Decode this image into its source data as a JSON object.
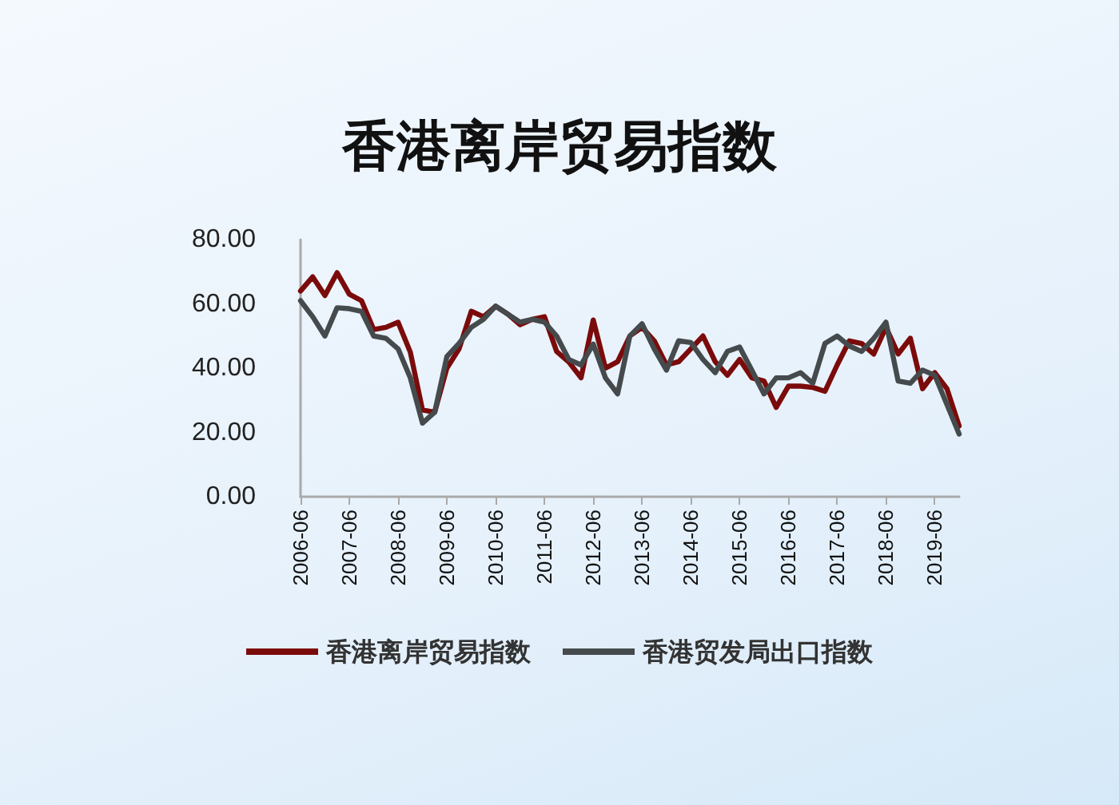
{
  "chart_data": {
    "type": "line",
    "title": "香港离岸贸易指数",
    "categories": [
      "2006-06",
      null,
      null,
      null,
      "2007-06",
      null,
      null,
      null,
      "2008-06",
      null,
      null,
      null,
      "2009-06",
      null,
      null,
      null,
      "2010-06",
      null,
      null,
      null,
      "2011-06",
      null,
      null,
      null,
      "2012-06",
      null,
      null,
      null,
      "2013-06",
      null,
      null,
      null,
      "2014-06",
      null,
      null,
      null,
      "2015-06",
      null,
      null,
      null,
      "2016-06",
      null,
      null,
      null,
      "2017-06",
      null,
      null,
      null,
      "2018-06",
      null,
      null,
      null,
      "2019-06",
      null,
      null
    ],
    "series": [
      {
        "name": "香港离岸贸易指数",
        "color": "#7b0b0b",
        "values": [
          64,
          68.4,
          62.6,
          69.7,
          63,
          61,
          52,
          52.7,
          54.3,
          45,
          27,
          26.3,
          40,
          46,
          57.7,
          56,
          59.3,
          56.8,
          53.5,
          55.2,
          56,
          45.2,
          41.9,
          37,
          55,
          40,
          42,
          50,
          52.7,
          48.5,
          41,
          42,
          46,
          50,
          42,
          37.8,
          42.7,
          37,
          36,
          27.8,
          34.4,
          34.4,
          34,
          32.8,
          41,
          48.5,
          47.7,
          44.4,
          52.7,
          44.4,
          49.3,
          33.6,
          38.6,
          33.6,
          22
        ]
      },
      {
        "name": "香港贸发局出口指数",
        "color": "#454a4c",
        "values": [
          61,
          56,
          50,
          58.8,
          58.5,
          57.7,
          50,
          49.3,
          46,
          37,
          22.9,
          26.3,
          43.6,
          47.7,
          52.7,
          55.2,
          59.3,
          56.8,
          54.3,
          55.2,
          54.3,
          50,
          42.7,
          41,
          47.5,
          37,
          32,
          50,
          53.8,
          46,
          39.4,
          48.5,
          48,
          42.7,
          38.6,
          45.2,
          46.6,
          39.4,
          32,
          37,
          37,
          38.6,
          35.3,
          47.7,
          50,
          46.9,
          45.2,
          49.3,
          54.3,
          36,
          35.3,
          39.4,
          37.8,
          28.7,
          19.5
        ]
      }
    ],
    "ylim": [
      0,
      80
    ],
    "yticks": [
      {
        "value": 0,
        "label": "0.00"
      },
      {
        "value": 20,
        "label": "20.00"
      },
      {
        "value": 40,
        "label": "40.00"
      },
      {
        "value": 60,
        "label": "60.00"
      },
      {
        "value": 80,
        "label": "80.00"
      }
    ],
    "grid": false,
    "legend": "bottom",
    "marker": "none",
    "line_style": "solid"
  }
}
